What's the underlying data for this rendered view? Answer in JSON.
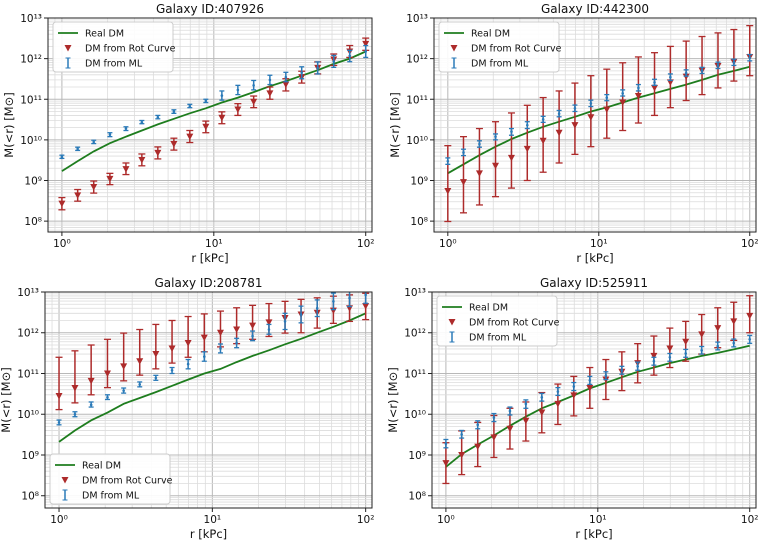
{
  "colors": {
    "real_dm": "#1e7d1e",
    "rot_curve": "#ad2b2b",
    "ml": "#2a7ab8"
  },
  "chart_data": [
    {
      "type": "scatter",
      "title": "Galaxy ID:407926",
      "xlabel": "r [kPc]",
      "ylabel": "M(<r) [M⊙]",
      "xscale": "log",
      "yscale": "log",
      "xlim": [
        0.81,
        110
      ],
      "ylim": [
        54000000.0,
        10000000000000.0
      ],
      "xtick_exponents": [
        0,
        1,
        2
      ],
      "ytick_exponents": [
        8,
        9,
        10,
        11,
        12,
        13
      ],
      "grid": "major+minor",
      "legend_position": "upper-left",
      "legend": [
        "Real DM",
        "DM from Rot Curve",
        "DM from ML"
      ],
      "x": [
        1,
        1.27,
        1.62,
        2.07,
        2.64,
        3.36,
        4.28,
        5.46,
        6.95,
        8.86,
        11.3,
        14.4,
        18.3,
        23.4,
        29.8,
        37.9,
        48.3,
        61.6,
        78.5,
        100
      ],
      "real_dm": [
        1700000000.0,
        3000000000.0,
        5200000000.0,
        8300000000.0,
        12000000000.0,
        17000000000.0,
        24000000000.0,
        33000000000.0,
        45000000000.0,
        60000000000.0,
        83000000000.0,
        110000000000.0,
        150000000000.0,
        210000000000.0,
        280000000000.0,
        380000000000.0,
        520000000000.0,
        740000000000.0,
        1000000000000.0,
        1500000000000.0
      ],
      "rot_curve": {
        "y": [
          270000000.0,
          430000000.0,
          690000000.0,
          1100000000.0,
          1900000000.0,
          3200000000.0,
          4800000000.0,
          7900000000.0,
          12000000000.0,
          21000000000.0,
          35000000000.0,
          56000000000.0,
          87000000000.0,
          140000000000.0,
          230000000000.0,
          350000000000.0,
          590000000000.0,
          950000000000.0,
          1500000000000.0,
          2300000000000.0
        ],
        "lower": [
          190000000.0,
          310000000.0,
          490000000.0,
          790000000.0,
          1400000000.0,
          2300000000.0,
          3400000000.0,
          5600000000.0,
          8600000000.0,
          15000000000.0,
          25000000000.0,
          40000000000.0,
          62000000000.0,
          100000000000.0,
          160000000000.0,
          250000000000.0,
          420000000000.0,
          680000000000.0,
          1070000000000.0,
          1600000000000.0
        ],
        "upper": [
          380000000.0,
          600000000.0,
          970000000.0,
          1500000000.0,
          2700000000.0,
          4500000000.0,
          6700000000.0,
          11000000000.0,
          17000000000.0,
          29000000000.0,
          49000000000.0,
          78000000000.0,
          120000000000.0,
          200000000000.0,
          320000000000.0,
          490000000000.0,
          830000000000.0,
          1300000000000.0,
          2100000000000.0,
          3200000000000.0
        ]
      },
      "ml": {
        "y": [
          3800000000.0,
          6000000000.0,
          8900000000.0,
          13500000000.0,
          19000000000.0,
          27000000000.0,
          36000000000.0,
          50000000000.0,
          68000000000.0,
          91000000000.0,
          123000000000.0,
          170000000000.0,
          220000000000.0,
          300000000000.0,
          350000000000.0,
          450000000000.0,
          590000000000.0,
          850000000000.0,
          1170000000000.0,
          1500000000000.0
        ],
        "lower": [
          3500000000.0,
          5500000000.0,
          8100000000.0,
          12000000000.0,
          17000000000.0,
          25000000000.0,
          33000000000.0,
          45000000000.0,
          62000000000.0,
          83000000000.0,
          95000000000.0,
          130000000000.0,
          170000000000.0,
          230000000000.0,
          270000000000.0,
          320000000000.0,
          420000000000.0,
          610000000000.0,
          840000000000.0,
          1070000000000.0
        ],
        "upper": [
          4200000000.0,
          6600000000.0,
          9800000000.0,
          15000000000.0,
          21000000000.0,
          30000000000.0,
          40000000000.0,
          55000000000.0,
          75000000000.0,
          100000000000.0,
          160000000000.0,
          220000000000.0,
          290000000000.0,
          390000000000.0,
          460000000000.0,
          630000000000.0,
          830000000000.0,
          1200000000000.0,
          1600000000000.0,
          2100000000000.0
        ]
      }
    },
    {
      "type": "scatter",
      "title": "Galaxy ID:442300",
      "xlabel": "r [kPc]",
      "ylabel": "M(<r) [M⊙]",
      "xscale": "log",
      "yscale": "log",
      "xlim": [
        0.81,
        110
      ],
      "ylim": [
        54000000.0,
        10000000000000.0
      ],
      "xtick_exponents": [
        0,
        1,
        2
      ],
      "ytick_exponents": [
        8,
        9,
        10,
        11,
        12,
        13
      ],
      "grid": "major+minor",
      "legend_position": "upper-left",
      "legend": [
        "Real DM",
        "DM from Rot Curve",
        "DM from ML"
      ],
      "x": [
        1,
        1.27,
        1.62,
        2.07,
        2.64,
        3.36,
        4.28,
        5.46,
        6.95,
        8.86,
        11.3,
        14.4,
        18.3,
        23.4,
        29.8,
        37.9,
        48.3,
        61.6,
        78.5,
        100
      ],
      "real_dm": [
        1500000000.0,
        2500000000.0,
        4200000000.0,
        6800000000.0,
        10500000000.0,
        15000000000.0,
        21000000000.0,
        28000000000.0,
        37000000000.0,
        50000000000.0,
        63000000000.0,
        83000000000.0,
        110000000000.0,
        140000000000.0,
        180000000000.0,
        230000000000.0,
        300000000000.0,
        400000000000.0,
        500000000000.0,
        630000000000.0
      ],
      "rot_curve": {
        "y": [
          550000000.0,
          910000000.0,
          1500000000.0,
          2300000000.0,
          3600000000.0,
          6000000000.0,
          9500000000.0,
          15000000000.0,
          23000000000.0,
          36000000000.0,
          56000000000.0,
          83000000000.0,
          120000000000.0,
          190000000000.0,
          260000000000.0,
          360000000000.0,
          510000000000.0,
          660000000000.0,
          830000000000.0,
          1100000000000.0
        ],
        "lower": [
          98000000.0,
          160000000.0,
          250000000.0,
          400000000.0,
          650000000.0,
          1000000000.0,
          1600000000.0,
          2700000000.0,
          4400000000.0,
          6800000000.0,
          11000000000.0,
          17000000000.0,
          26000000000.0,
          40000000000.0,
          62000000000.0,
          93000000000.0,
          130000000000.0,
          190000000000.0,
          280000000000.0,
          380000000000.0
        ],
        "upper": [
          7200000000.0,
          12000000000.0,
          19000000000.0,
          28000000000.0,
          46000000000.0,
          71000000000.0,
          110000000000.0,
          160000000000.0,
          250000000000.0,
          380000000000.0,
          550000000000.0,
          790000000000.0,
          1100000000000.0,
          1400000000000.0,
          2000000000000.0,
          2700000000000.0,
          3500000000000.0,
          4300000000000.0,
          5200000000000.0,
          6500000000000.0
        ]
      },
      "ml": {
        "y": [
          3000000000.0,
          4900000000.0,
          7900000000.0,
          12000000000.0,
          16000000000.0,
          23000000000.0,
          32000000000.0,
          44000000000.0,
          60000000000.0,
          79000000000.0,
          110000000000.0,
          140000000000.0,
          190000000000.0,
          260000000000.0,
          350000000000.0,
          440000000000.0,
          510000000000.0,
          680000000000.0,
          810000000000.0,
          1050000000000.0
        ],
        "lower": [
          2500000000.0,
          4100000000.0,
          6600000000.0,
          10000000000.0,
          13000000000.0,
          19000000000.0,
          27000000000.0,
          37000000000.0,
          50000000000.0,
          66000000000.0,
          92000000000.0,
          120000000000.0,
          160000000000.0,
          220000000000.0,
          290000000000.0,
          370000000000.0,
          430000000000.0,
          570000000000.0,
          680000000000.0,
          880000000000.0
        ],
        "upper": [
          3600000000.0,
          5900000000.0,
          9500000000.0,
          14000000000.0,
          19000000000.0,
          28000000000.0,
          38000000000.0,
          53000000000.0,
          72000000000.0,
          95000000000.0,
          130000000000.0,
          170000000000.0,
          230000000000.0,
          310000000000.0,
          420000000000.0,
          530000000000.0,
          610000000000.0,
          820000000000.0,
          970000000000.0,
          1260000000000.0
        ]
      }
    },
    {
      "type": "scatter",
      "title": "Galaxy ID:208781",
      "xlabel": "r [kPc]",
      "ylabel": "M(<r) [M⊙]",
      "xscale": "log",
      "yscale": "log",
      "xlim": [
        0.81,
        110
      ],
      "ylim": [
        50000000.0,
        10000000000000.0
      ],
      "xtick_exponents": [
        0,
        1,
        2
      ],
      "ytick_exponents": [
        8,
        9,
        10,
        11,
        12,
        13
      ],
      "grid": "major+minor",
      "legend_position": "lower-left",
      "legend": [
        "Real DM",
        "DM from Rot Curve",
        "DM from ML"
      ],
      "x": [
        1,
        1.27,
        1.62,
        2.07,
        2.64,
        3.36,
        4.28,
        5.46,
        6.95,
        8.86,
        11.3,
        14.4,
        18.3,
        23.4,
        29.8,
        37.9,
        48.3,
        61.6,
        78.5,
        100
      ],
      "real_dm": [
        2100000000.0,
        4000000000.0,
        7100000000.0,
        11000000000.0,
        18000000000.0,
        25000000000.0,
        35000000000.0,
        50000000000.0,
        71000000000.0,
        100000000000.0,
        130000000000.0,
        190000000000.0,
        270000000000.0,
        370000000000.0,
        520000000000.0,
        710000000000.0,
        1000000000000.0,
        1400000000000.0,
        2000000000000.0,
        3000000000000.0
      ],
      "rot_curve": {
        "y": [
          28000000000.0,
          44000000000.0,
          66000000000.0,
          100000000000.0,
          150000000000.0,
          200000000000.0,
          300000000000.0,
          410000000000.0,
          560000000000.0,
          760000000000.0,
          1000000000000.0,
          1200000000000.0,
          1500000000000.0,
          1800000000000.0,
          2300000000000.0,
          2800000000000.0,
          3100000000000.0,
          3500000000000.0,
          4000000000000.0,
          4500000000000.0
        ],
        "lower": [
          13000000000.0,
          19000000000.0,
          30000000000.0,
          45000000000.0,
          66000000000.0,
          91000000000.0,
          130000000000.0,
          180000000000.0,
          250000000000.0,
          340000000000.0,
          450000000000.0,
          540000000000.0,
          690000000000.0,
          810000000000.0,
          980000000000.0,
          1000000000000.0,
          1300000000000.0,
          1700000000000.0,
          1900000000000.0,
          2100000000000.0
        ],
        "upper": [
          250000000000.0,
          360000000000.0,
          500000000000.0,
          690000000000.0,
          980000000000.0,
          1200000000000.0,
          1600000000000.0,
          2000000000000.0,
          2500000000000.0,
          2900000000000.0,
          3400000000000.0,
          4100000000000.0,
          4700000000000.0,
          5200000000000.0,
          5900000000000.0,
          6600000000000.0,
          7200000000000.0,
          7900000000000.0,
          8500000000000.0,
          9300000000000.0
        ]
      },
      "ml": {
        "y": [
          6300000000.0,
          10000000000.0,
          17000000000.0,
          26000000000.0,
          38000000000.0,
          54000000000.0,
          78000000000.0,
          120000000000.0,
          170000000000.0,
          260000000000.0,
          410000000000.0,
          560000000000.0,
          830000000000.0,
          1200000000000.0,
          1900000000000.0,
          2800000000000.0,
          4000000000000.0,
          5900000000000.0,
          7100000000000.0,
          8500000000000.0
        ],
        "lower": [
          5500000000.0,
          8700000000.0,
          15000000000.0,
          23000000000.0,
          33000000000.0,
          47000000000.0,
          68000000000.0,
          100000000000.0,
          130000000000.0,
          200000000000.0,
          320000000000.0,
          430000000000.0,
          640000000000.0,
          920000000000.0,
          1200000000000.0,
          1750000000000.0,
          2500000000000.0,
          3700000000000.0,
          4400000000000.0,
          5300000000000.0
        ],
        "upper": [
          7200000000.0,
          11500000000.0,
          20000000000.0,
          30000000000.0,
          44000000000.0,
          62000000000.0,
          90000000000.0,
          140000000000.0,
          220000000000.0,
          340000000000.0,
          530000000000.0,
          730000000000.0,
          1100000000000.0,
          1600000000000.0,
          3000000000000.0,
          4500000000000.0,
          6400000000000.0,
          9400000000000.0,
          11000000000000.0,
          14000000000000.0
        ]
      }
    },
    {
      "type": "scatter",
      "title": "Galaxy ID:525911",
      "xlabel": "r [kPc]",
      "ylabel": "M(<r) [M⊙]",
      "xscale": "log",
      "yscale": "log",
      "xlim": [
        0.81,
        110
      ],
      "ylim": [
        50000000.0,
        10000000000000.0
      ],
      "xtick_exponents": [
        0,
        1,
        2
      ],
      "ytick_exponents": [
        8,
        9,
        10,
        11,
        12,
        13
      ],
      "grid": "major+minor",
      "legend_position": "upper-left",
      "legend": [
        "Real DM",
        "DM from Rot Curve",
        "DM from ML"
      ],
      "x": [
        1,
        1.27,
        1.62,
        2.07,
        2.64,
        3.36,
        4.28,
        5.46,
        6.95,
        8.86,
        11.3,
        14.4,
        18.3,
        23.4,
        29.8,
        37.9,
        48.3,
        61.6,
        78.5,
        100
      ],
      "real_dm": [
        510000000.0,
        1050000000.0,
        1800000000.0,
        3000000000.0,
        5200000000.0,
        8700000000.0,
        14000000000.0,
        20000000000.0,
        29000000000.0,
        43000000000.0,
        59000000000.0,
        81000000000.0,
        110000000000.0,
        140000000000.0,
        180000000000.0,
        220000000000.0,
        270000000000.0,
        320000000000.0,
        390000000000.0,
        480000000000.0
      ],
      "rot_curve": {
        "y": [
          630000000.0,
          1000000000.0,
          1600000000.0,
          2700000000.0,
          4400000000.0,
          6900000000.0,
          11000000000.0,
          18000000000.0,
          29000000000.0,
          44000000000.0,
          71000000000.0,
          110000000000.0,
          180000000000.0,
          270000000000.0,
          410000000000.0,
          600000000000.0,
          910000000000.0,
          1300000000000.0,
          1900000000000.0,
          2600000000000.0
        ],
        "lower": [
          200000000.0,
          330000000.0,
          520000000.0,
          870000000.0,
          1400000000.0,
          2200000000.0,
          3500000000.0,
          5600000000.0,
          9100000000.0,
          14000000000.0,
          23000000000.0,
          38000000000.0,
          59000000000.0,
          91000000000.0,
          140000000000.0,
          200000000000.0,
          300000000000.0,
          430000000000.0,
          650000000000.0,
          1000000000000.0
        ],
        "upper": [
          2000000000.0,
          3900000000.0,
          6300000000.0,
          9300000000.0,
          14000000000.0,
          20000000000.0,
          34000000000.0,
          55000000000.0,
          85000000000.0,
          140000000000.0,
          220000000000.0,
          340000000000.0,
          540000000000.0,
          830000000000.0,
          1300000000000.0,
          1900000000000.0,
          2800000000000.0,
          4100000000000.0,
          5600000000000.0,
          8100000000000.0
        ]
      },
      "ml": {
        "y": [
          1900000000.0,
          3200000000.0,
          5500000000.0,
          8300000000.0,
          12000000000.0,
          18000000000.0,
          26000000000.0,
          36000000000.0,
          48000000000.0,
          68000000000.0,
          89000000000.0,
          120000000000.0,
          150000000000.0,
          200000000000.0,
          250000000000.0,
          310000000000.0,
          370000000000.0,
          470000000000.0,
          560000000000.0,
          690000000000.0
        ],
        "lower": [
          1500000000.0,
          2600000000.0,
          4400000000.0,
          6600000000.0,
          9600000000.0,
          14000000000.0,
          21000000000.0,
          29000000000.0,
          38000000000.0,
          54000000000.0,
          71000000000.0,
          96000000000.0,
          120000000000.0,
          160000000000.0,
          200000000000.0,
          250000000000.0,
          300000000000.0,
          380000000000.0,
          450000000000.0,
          550000000000.0
        ],
        "upper": [
          2400000000.0,
          4000000000.0,
          6900000000.0,
          10400000000.0,
          15000000000.0,
          22500000000.0,
          32500000000.0,
          45000000000.0,
          60000000000.0,
          85000000000.0,
          110000000000.0,
          150000000000.0,
          190000000000.0,
          250000000000.0,
          310000000000.0,
          390000000000.0,
          460000000000.0,
          590000000000.0,
          700000000000.0,
          860000000000.0
        ]
      }
    }
  ]
}
